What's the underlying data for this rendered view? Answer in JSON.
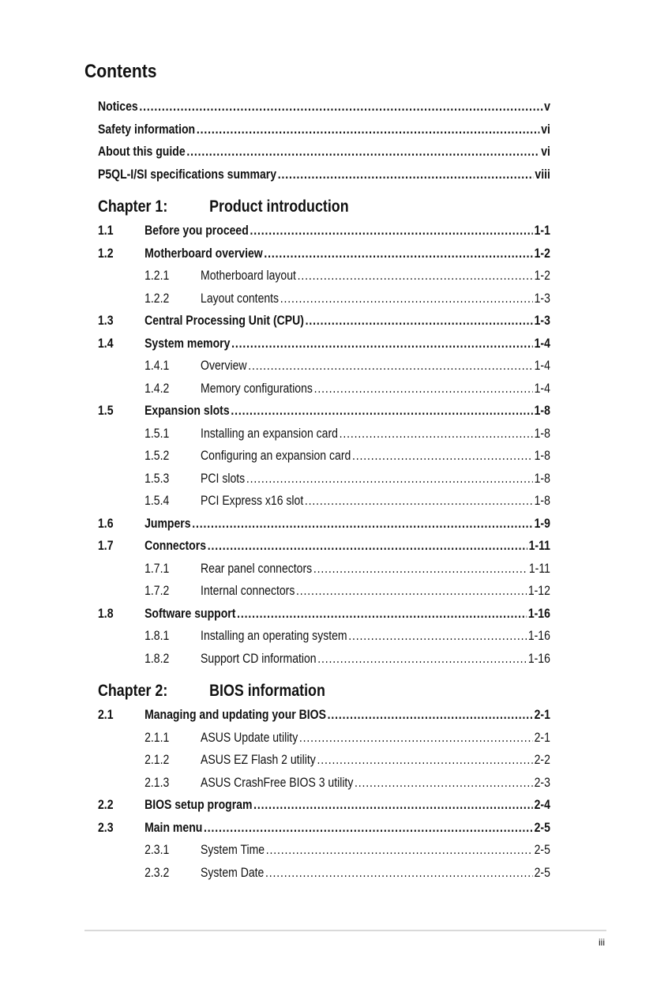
{
  "title": "Contents",
  "front": [
    {
      "label": "Notices",
      "page": "v"
    },
    {
      "label": "Safety information",
      "page": "vi"
    },
    {
      "label": "About this guide",
      "page": "vi"
    },
    {
      "label": "P5QL-I/SI specifications summary",
      "page": "viii"
    }
  ],
  "chapters": [
    {
      "number": "Chapter 1:",
      "title": "Product introduction",
      "entries": [
        {
          "level": 1,
          "num": "1.1",
          "label": "Before you proceed",
          "page": "1-1"
        },
        {
          "level": 1,
          "num": "1.2",
          "label": "Motherboard overview",
          "page": "1-2"
        },
        {
          "level": 2,
          "num": "1.2.1",
          "label": "Motherboard layout",
          "page": "1-2"
        },
        {
          "level": 2,
          "num": "1.2.2",
          "label": "Layout contents",
          "page": "1-3"
        },
        {
          "level": 1,
          "num": "1.3",
          "label": "Central Processing Unit (CPU)",
          "page": "1-3"
        },
        {
          "level": 1,
          "num": "1.4",
          "label": "System memory",
          "page": "1-4"
        },
        {
          "level": 2,
          "num": "1.4.1",
          "label": "Overview",
          "page": "1-4"
        },
        {
          "level": 2,
          "num": "1.4.2",
          "label": "Memory configurations",
          "page": "1-4"
        },
        {
          "level": 1,
          "num": "1.5",
          "label": "Expansion slots",
          "page": "1-8"
        },
        {
          "level": 2,
          "num": "1.5.1",
          "label": "Installing an expansion card",
          "page": "1-8"
        },
        {
          "level": 2,
          "num": "1.5.2",
          "label": "Configuring an expansion card",
          "page": "1-8"
        },
        {
          "level": 2,
          "num": "1.5.3",
          "label": "PCI slots",
          "page": "1-8"
        },
        {
          "level": 2,
          "num": "1.5.4",
          "label": "PCI Express x16 slot",
          "page": "1-8"
        },
        {
          "level": 1,
          "num": "1.6",
          "label": "Jumpers",
          "page": "1-9"
        },
        {
          "level": 1,
          "num": "1.7",
          "label": "Connectors",
          "page": "1-11"
        },
        {
          "level": 2,
          "num": "1.7.1",
          "label": "Rear panel connectors",
          "page": "1-11"
        },
        {
          "level": 2,
          "num": "1.7.2",
          "label": "Internal connectors",
          "page": "1-12"
        },
        {
          "level": 1,
          "num": "1.8",
          "label": "Software support",
          "page": "1-16"
        },
        {
          "level": 2,
          "num": "1.8.1",
          "label": "Installing an operating system",
          "page": "1-16"
        },
        {
          "level": 2,
          "num": "1.8.2",
          "label": "Support CD information",
          "page": "1-16"
        }
      ]
    },
    {
      "number": "Chapter 2:",
      "title": "BIOS information",
      "entries": [
        {
          "level": 1,
          "num": "2.1",
          "label": "Managing and updating your BIOS",
          "page": "2-1"
        },
        {
          "level": 2,
          "num": "2.1.1",
          "label": "ASUS Update utility",
          "page": "2-1"
        },
        {
          "level": 2,
          "num": "2.1.2",
          "label": "ASUS EZ Flash 2 utility",
          "page": "2-2"
        },
        {
          "level": 2,
          "num": "2.1.3",
          "label": "ASUS CrashFree BIOS 3 utility",
          "page": "2-3"
        },
        {
          "level": 1,
          "num": "2.2",
          "label": "BIOS setup program",
          "page": "2-4"
        },
        {
          "level": 1,
          "num": "2.3",
          "label": "Main menu",
          "page": "2-5"
        },
        {
          "level": 2,
          "num": "2.3.1",
          "label": "System Time",
          "page": "2-5"
        },
        {
          "level": 2,
          "num": "2.3.2",
          "label": "System Date",
          "page": "2-5"
        }
      ]
    }
  ],
  "footer": {
    "page_number": "iii"
  }
}
